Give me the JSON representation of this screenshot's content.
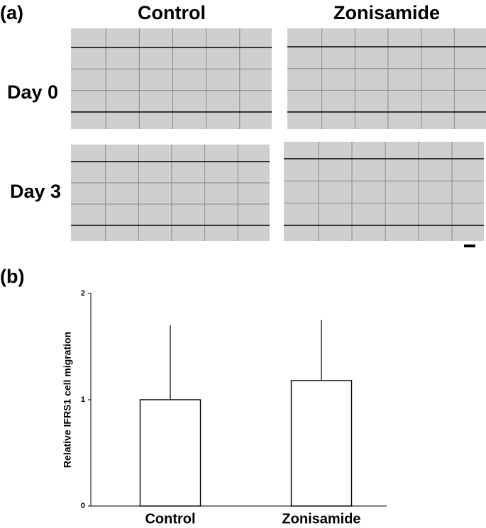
{
  "panel_a": {
    "label": "(a)",
    "columns": [
      "Control",
      "Zonisamide"
    ],
    "rows": [
      "Day 0",
      "Day 3"
    ]
  },
  "chart_data": {
    "type": "bar",
    "panel_label": "(b)",
    "y_label": "Relative IFRS1 cell migration",
    "categories": [
      "Control",
      "Zonisamide"
    ],
    "values": [
      1.0,
      1.18
    ],
    "errors": [
      0.7,
      0.57
    ],
    "color": "#ffffff",
    "ylim": [
      0,
      2
    ],
    "yticks": [
      0,
      1,
      2
    ]
  }
}
